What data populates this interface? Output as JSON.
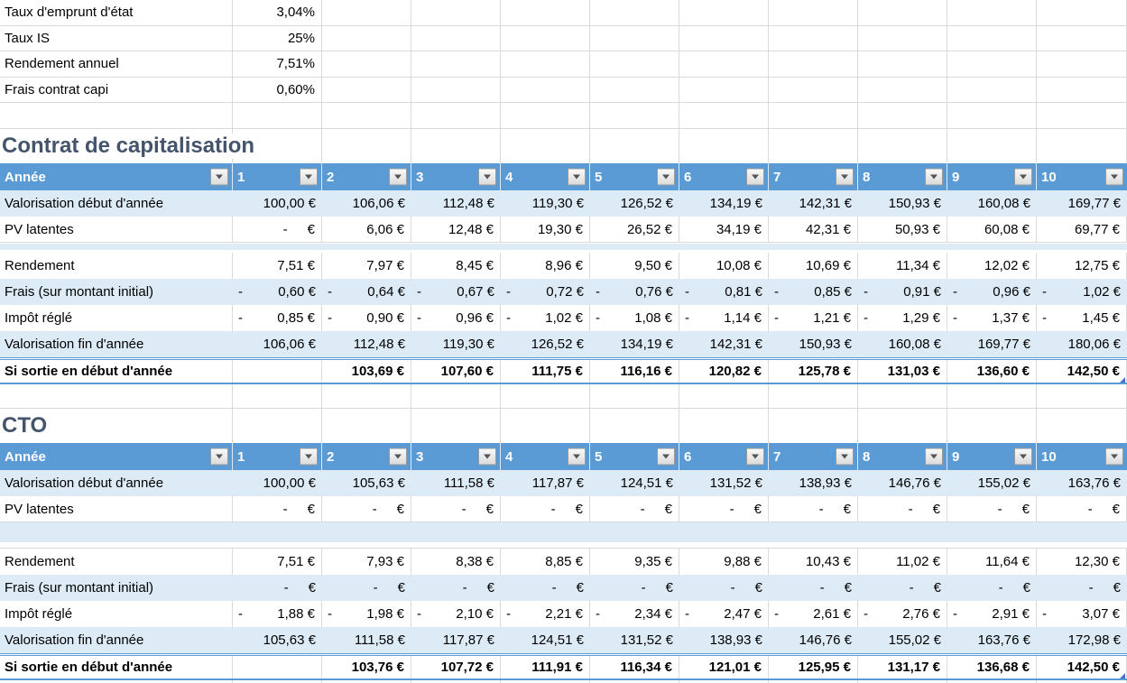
{
  "colors": {
    "header_bg": "#5B9BD5",
    "banded_row_bg": "#DDEBF7",
    "title_text": "#44546A",
    "gridline": "#D9D9D9",
    "table_border_accent": "#5B9BD5",
    "resize_handle": "#4472C4",
    "header_text": "#FFFFFF"
  },
  "icons": {
    "filter_dropdown": "▼"
  },
  "params": {
    "rows": [
      {
        "label": "Taux d'emprunt d'état",
        "value": "3,04%"
      },
      {
        "label": "Taux IS",
        "value": "25%"
      },
      {
        "label": "Rendement annuel",
        "value": "7,51%"
      },
      {
        "label": "Frais contrat capi",
        "value": "0,60%"
      }
    ]
  },
  "tables": [
    {
      "title": "Contrat de capitalisation",
      "header": {
        "label": "Année",
        "years": [
          "1",
          "2",
          "3",
          "4",
          "5",
          "6",
          "7",
          "8",
          "9",
          "10"
        ]
      },
      "rows": [
        {
          "kind": "band",
          "label": "Valorisation début d'année",
          "values": [
            "100,00 €",
            "106,06 €",
            "112,48 €",
            "119,30 €",
            "126,52 €",
            "134,19 €",
            "142,31 €",
            "150,93 €",
            "160,08 €",
            "169,77 €"
          ]
        },
        {
          "kind": "plain",
          "label": "PV latentes",
          "values": [
            "- €",
            "6,06 €",
            "12,48 €",
            "19,30 €",
            "26,52 €",
            "34,19 €",
            "42,31 €",
            "50,93 €",
            "60,08 €",
            "69,77 €"
          ]
        },
        {
          "kind": "spacer-thin",
          "label": "",
          "values": []
        },
        {
          "kind": "plain",
          "label": "Rendement",
          "values": [
            "7,51 €",
            "7,97 €",
            "8,45 €",
            "8,96 €",
            "9,50 €",
            "10,08 €",
            "10,69 €",
            "11,34 €",
            "12,02 €",
            "12,75 €"
          ]
        },
        {
          "kind": "band",
          "label": "Frais (sur montant initial)",
          "values": [
            "- 0,60 €",
            "- 0,64 €",
            "- 0,67 €",
            "- 0,72 €",
            "- 0,76 €",
            "- 0,81 €",
            "- 0,85 €",
            "- 0,91 €",
            "- 0,96 €",
            "- 1,02 €"
          ]
        },
        {
          "kind": "plain",
          "label": "Impôt réglé",
          "values": [
            "- 0,85 €",
            "- 0,90 €",
            "- 0,96 €",
            "- 1,02 €",
            "- 1,08 €",
            "- 1,14 €",
            "- 1,21 €",
            "- 1,29 €",
            "- 1,37 €",
            "- 1,45 €"
          ]
        },
        {
          "kind": "band",
          "label": "Valorisation fin d'année",
          "values": [
            "106,06 €",
            "112,48 €",
            "119,30 €",
            "126,52 €",
            "134,19 €",
            "142,31 €",
            "150,93 €",
            "160,08 €",
            "169,77 €",
            "180,06 €"
          ]
        },
        {
          "kind": "total",
          "label": "Si sortie en début d'année",
          "values": [
            "",
            "103,69 €",
            "107,60 €",
            "111,75 €",
            "116,16 €",
            "120,82 €",
            "125,78 €",
            "131,03 €",
            "136,60 €",
            "142,50 €"
          ]
        }
      ]
    },
    {
      "title": "CTO",
      "header": {
        "label": "Année",
        "years": [
          "1",
          "2",
          "3",
          "4",
          "5",
          "6",
          "7",
          "8",
          "9",
          "10"
        ]
      },
      "rows": [
        {
          "kind": "band",
          "label": "Valorisation début d'année",
          "values": [
            "100,00 €",
            "105,63 €",
            "111,58 €",
            "117,87 €",
            "124,51 €",
            "131,52 €",
            "138,93 €",
            "146,76 €",
            "155,02 €",
            "163,76 €"
          ]
        },
        {
          "kind": "plain",
          "label": "PV latentes",
          "values": [
            "- €",
            "- €",
            "- €",
            "- €",
            "- €",
            "- €",
            "- €",
            "- €",
            "- €",
            "- €"
          ]
        },
        {
          "kind": "spacer-band",
          "label": "",
          "values": []
        },
        {
          "kind": "plain",
          "label": "Rendement",
          "values": [
            "7,51 €",
            "7,93 €",
            "8,38 €",
            "8,85 €",
            "9,35 €",
            "9,88 €",
            "10,43 €",
            "11,02 €",
            "11,64 €",
            "12,30 €"
          ]
        },
        {
          "kind": "band",
          "label": "Frais (sur montant initial)",
          "values": [
            "- €",
            "- €",
            "- €",
            "- €",
            "- €",
            "- €",
            "- €",
            "- €",
            "- €",
            "- €"
          ]
        },
        {
          "kind": "plain",
          "label": "Impôt réglé",
          "values": [
            "- 1,88 €",
            "- 1,98 €",
            "- 2,10 €",
            "- 2,21 €",
            "- 2,34 €",
            "- 2,47 €",
            "- 2,61 €",
            "- 2,76 €",
            "- 2,91 €",
            "- 3,07 €"
          ]
        },
        {
          "kind": "band",
          "label": "Valorisation fin d'année",
          "values": [
            "105,63 €",
            "111,58 €",
            "117,87 €",
            "124,51 €",
            "131,52 €",
            "138,93 €",
            "146,76 €",
            "155,02 €",
            "163,76 €",
            "172,98 €"
          ]
        },
        {
          "kind": "total",
          "label": "Si sortie en début d'année",
          "values": [
            "",
            "103,76 €",
            "107,72 €",
            "111,91 €",
            "116,34 €",
            "121,01 €",
            "125,95 €",
            "131,17 €",
            "136,68 €",
            "142,50 €"
          ]
        }
      ]
    }
  ]
}
